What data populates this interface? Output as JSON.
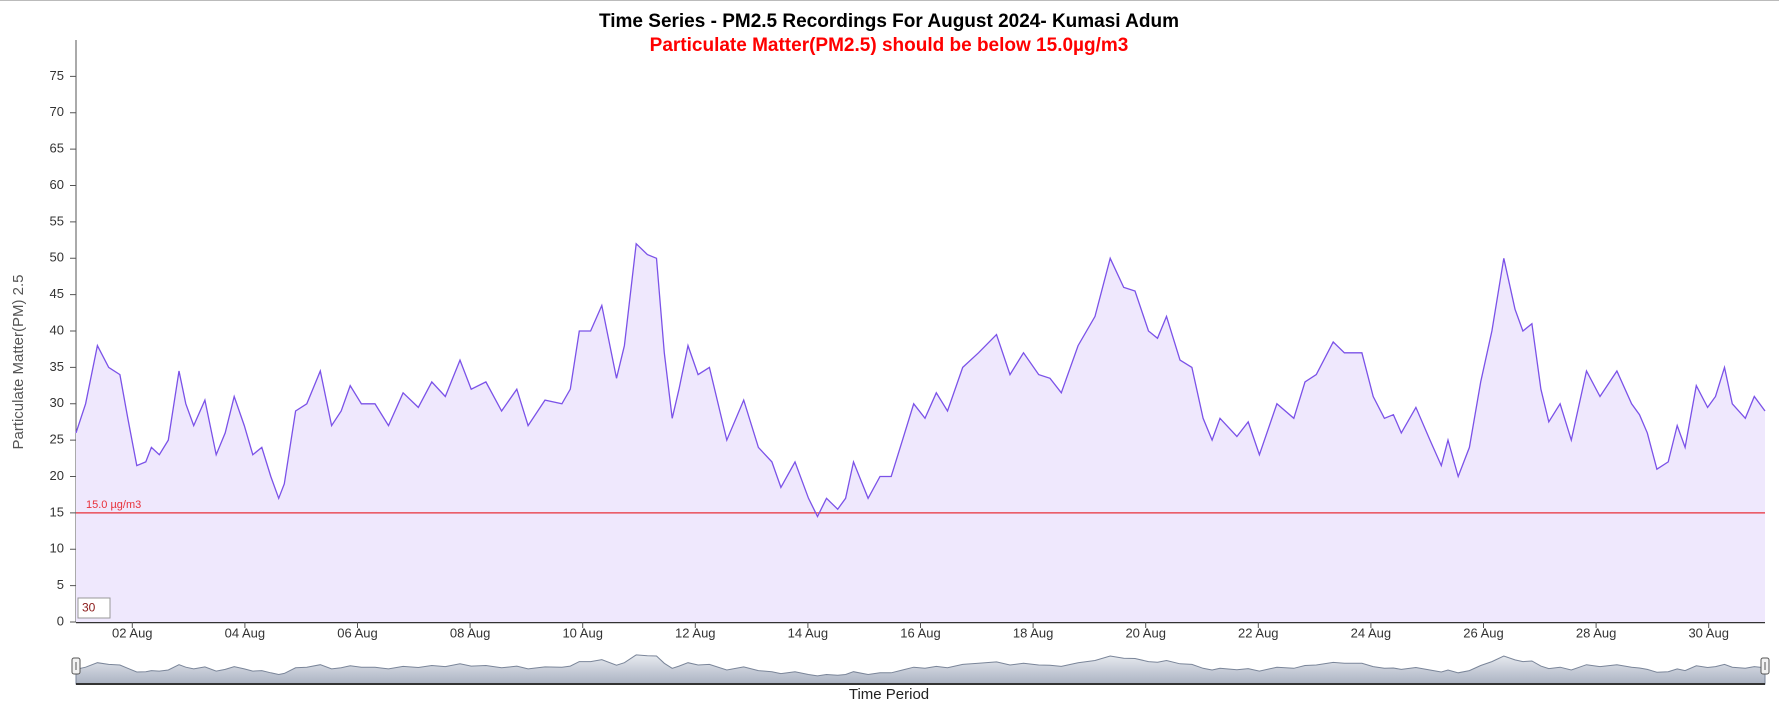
{
  "chart_data": {
    "type": "area",
    "title": "Time Series - PM2.5 Recordings For August 2024- Kumasi Adum",
    "subtitle": "Particulate Matter(PM2.5) should be below 15.0µg/m3",
    "y_label": "Particulate Matter(PM) 2.5",
    "x_label": "Time Period",
    "zoom_box": "30",
    "color": "#7b52e8",
    "fill": "#efe8fd",
    "threshold": {
      "value": 15,
      "label": "15.0 µg/m3",
      "color": "#e8303a"
    },
    "xlim": [
      1,
      31
    ],
    "ylim": [
      0,
      80
    ],
    "xticks": [
      {
        "value": 2,
        "label": "02 Aug"
      },
      {
        "value": 4,
        "label": "04 Aug"
      },
      {
        "value": 6,
        "label": "06 Aug"
      },
      {
        "value": 8,
        "label": "08 Aug"
      },
      {
        "value": 10,
        "label": "10 Aug"
      },
      {
        "value": 12,
        "label": "12 Aug"
      },
      {
        "value": 14,
        "label": "14 Aug"
      },
      {
        "value": 16,
        "label": "16 Aug"
      },
      {
        "value": 18,
        "label": "18 Aug"
      },
      {
        "value": 20,
        "label": "20 Aug"
      },
      {
        "value": 22,
        "label": "22 Aug"
      },
      {
        "value": 24,
        "label": "24 Aug"
      },
      {
        "value": 26,
        "label": "26 Aug"
      },
      {
        "value": 28,
        "label": "28 Aug"
      },
      {
        "value": 30,
        "label": "30 Aug"
      }
    ],
    "yticks": [
      0,
      5,
      10,
      15,
      20,
      25,
      30,
      35,
      40,
      45,
      50,
      55,
      60,
      65,
      70,
      75
    ],
    "x": [
      1,
      1.17,
      1.38,
      1.58,
      1.78,
      1.92,
      2.08,
      2.24,
      2.34,
      2.48,
      2.64,
      2.83,
      2.95,
      3.09,
      3.29,
      3.49,
      3.65,
      3.81,
      3.99,
      4.14,
      4.3,
      4.46,
      4.6,
      4.7,
      4.9,
      5.1,
      5.34,
      5.54,
      5.71,
      5.87,
      6.07,
      6.31,
      6.55,
      6.81,
      7.08,
      7.32,
      7.56,
      7.82,
      8.02,
      8.28,
      8.56,
      8.83,
      9.03,
      9.33,
      9.63,
      9.78,
      9.94,
      10.14,
      10.34,
      10.6,
      10.74,
      10.95,
      11.15,
      11.31,
      11.45,
      11.59,
      11.71,
      11.87,
      12.05,
      12.25,
      12.56,
      12.86,
      13.12,
      13.36,
      13.52,
      13.77,
      14.01,
      14.17,
      14.33,
      14.53,
      14.67,
      14.81,
      15.07,
      15.28,
      15.48,
      15.68,
      15.88,
      16.08,
      16.28,
      16.48,
      16.75,
      17.03,
      17.35,
      17.59,
      17.83,
      18.1,
      18.3,
      18.5,
      18.8,
      19.1,
      19.37,
      19.61,
      19.81,
      20.05,
      20.21,
      20.37,
      20.61,
      20.82,
      21.02,
      21.18,
      21.32,
      21.62,
      21.82,
      22.02,
      22.33,
      22.63,
      22.83,
      23.03,
      23.33,
      23.53,
      23.84,
      24.04,
      24.24,
      24.4,
      24.54,
      24.8,
      25.05,
      25.25,
      25.37,
      25.55,
      25.75,
      25.95,
      26.15,
      26.36,
      26.56,
      26.7,
      26.86,
      27.02,
      27.16,
      27.36,
      27.56,
      27.83,
      28.07,
      28.37,
      28.63,
      28.77,
      28.91,
      29.08,
      29.28,
      29.44,
      29.58,
      29.78,
      29.98,
      30.12,
      30.28,
      30.42,
      30.65,
      30.81,
      31
    ],
    "values": [
      26,
      30,
      38,
      35,
      34,
      28,
      21.5,
      22,
      24,
      23,
      25,
      34.5,
      30,
      27,
      30.5,
      23,
      26,
      31,
      27,
      23,
      24,
      20,
      17,
      19,
      29,
      30,
      34.5,
      27,
      29,
      32.5,
      30,
      30,
      27,
      31.5,
      29.5,
      33,
      31,
      36,
      32,
      33,
      29,
      32,
      27,
      30.5,
      30,
      32,
      40,
      40,
      43.5,
      33.5,
      38,
      52,
      50.5,
      50,
      37,
      28,
      32,
      38,
      34,
      35,
      25,
      30.5,
      24,
      22,
      18.5,
      22,
      17,
      14.5,
      17,
      15.5,
      17,
      22,
      17,
      20,
      20,
      25,
      30,
      28,
      31.5,
      29,
      35,
      37,
      39.5,
      34,
      37,
      34,
      33.5,
      31.5,
      38,
      42,
      50,
      46,
      45.5,
      40,
      39,
      42,
      36,
      35,
      28,
      25,
      28,
      25.5,
      27.5,
      23,
      30,
      28,
      33,
      34,
      38.5,
      37,
      37,
      31,
      28,
      28.5,
      26,
      29.5,
      25,
      21.5,
      25,
      20,
      24,
      33,
      40,
      50,
      43,
      40,
      41,
      32,
      27.5,
      30,
      25,
      34.5,
      31,
      34.5,
      30,
      28.5,
      26,
      21,
      22,
      27,
      24,
      32.5,
      29.5,
      31,
      35,
      30,
      28,
      31,
      29
    ]
  }
}
